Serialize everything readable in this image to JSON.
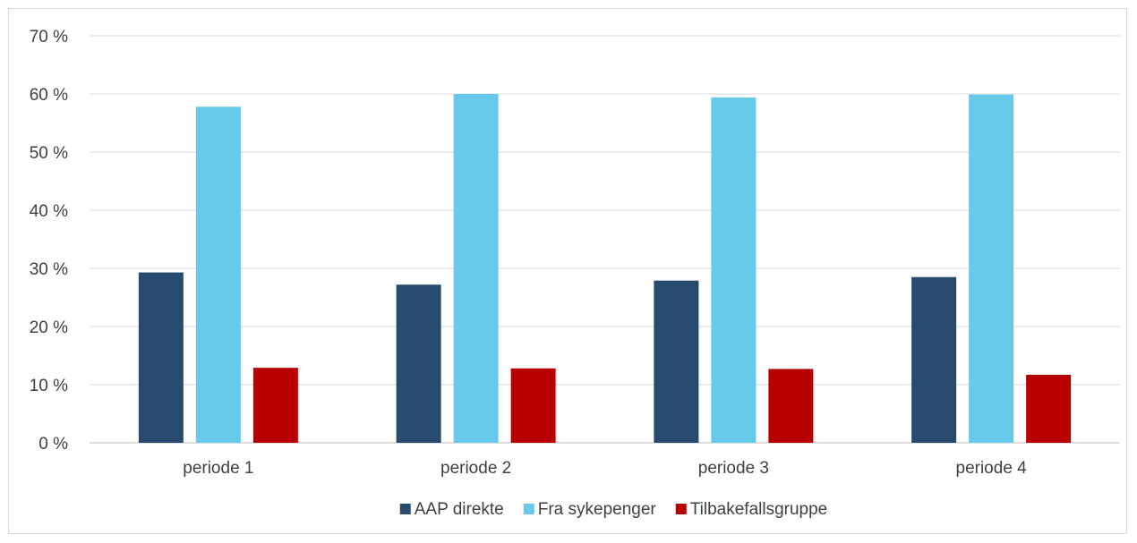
{
  "chart_data": {
    "type": "bar",
    "title": "",
    "xlabel": "",
    "ylabel": "",
    "categories": [
      "periode 1",
      "periode 2",
      "periode 3",
      "periode 4"
    ],
    "ylim": [
      0,
      70
    ],
    "yticks": [
      0,
      10,
      20,
      30,
      40,
      50,
      60,
      70
    ],
    "ytick_labels": [
      "0 %",
      "10 %",
      "20 %",
      "30 %",
      "40 %",
      "50 %",
      "60 %",
      "70 %"
    ],
    "grid": true,
    "legend_position": "bottom",
    "series": [
      {
        "name": "AAP direkte",
        "color": "#264b6e",
        "values": [
          29.3,
          27.2,
          27.9,
          28.5
        ]
      },
      {
        "name": "Fra sykepenger",
        "color": "#68caeb",
        "values": [
          57.8,
          60.0,
          59.4,
          59.9
        ]
      },
      {
        "name": "Tilbakefallsgruppe",
        "color": "#b80000",
        "values": [
          12.9,
          12.8,
          12.7,
          11.7
        ]
      }
    ]
  }
}
